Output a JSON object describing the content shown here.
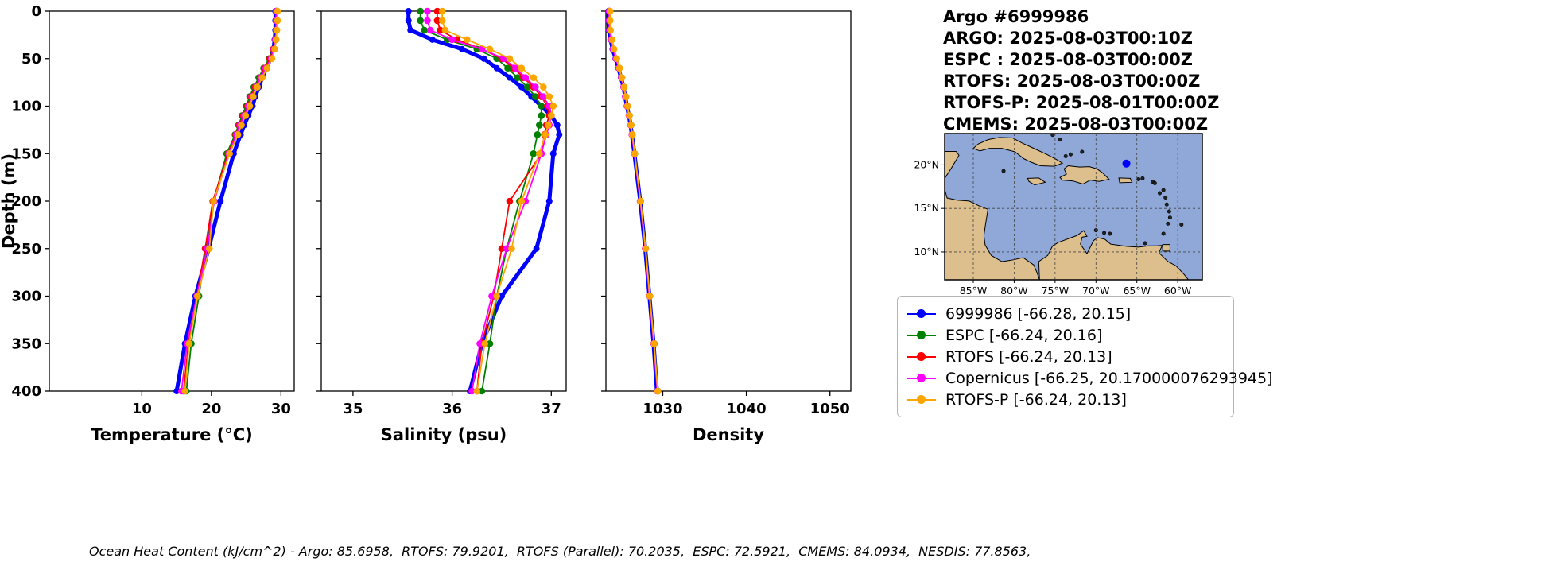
{
  "header": {
    "title": "Argo #6999986",
    "lines": [
      "ARGO: 2025-08-03T00:10Z",
      "ESPC : 2025-08-03T00:00Z",
      "RTOFS: 2025-08-03T00:00Z",
      "RTOFS-P: 2025-08-01T00:00Z",
      "CMEMS: 2025-08-03T00:00Z"
    ]
  },
  "legend": {
    "items": [
      {
        "label": "6999986 [-66.28, 20.15]",
        "color": "#0000ff"
      },
      {
        "label": "ESPC [-66.24, 20.16]",
        "color": "#008000"
      },
      {
        "label": "RTOFS [-66.24, 20.13]",
        "color": "#ff0000"
      },
      {
        "label": "Copernicus [-66.25, 20.170000076293945]",
        "color": "#ff00ff"
      },
      {
        "label": "RTOFS-P [-66.24, 20.13]",
        "color": "#ffa500"
      }
    ]
  },
  "map": {
    "lon_min": -88.5,
    "lon_max": -57.0,
    "lat_min": 6.8,
    "lat_max": 23.6,
    "xticks": [
      {
        "lon": -85,
        "label": "85°W"
      },
      {
        "lon": -80,
        "label": "80°W"
      },
      {
        "lon": -75,
        "label": "75°W"
      },
      {
        "lon": -70,
        "label": "70°W"
      },
      {
        "lon": -65,
        "label": "65°W"
      },
      {
        "lon": -60,
        "label": "60°W"
      }
    ],
    "yticks": [
      {
        "lat": 20,
        "label": "20°N"
      },
      {
        "lat": 15,
        "label": "15°N"
      },
      {
        "lat": 10,
        "label": "10°N"
      }
    ],
    "grid_lons": [
      -85,
      -80,
      -75,
      -70,
      -65,
      -60
    ],
    "grid_lats": [
      10,
      15,
      20
    ],
    "ocean_color": "#8fa8d8",
    "land_color": "#ddbe8d",
    "marker": {
      "lon": -66.28,
      "lat": 20.15,
      "color": "#0000ff"
    }
  },
  "footer": {
    "ohc_text": "Ocean Heat Content (kJ/cm^2) - Argo: 85.6958,  RTOFS: 79.9201,  RTOFS (Parallel): 70.2035,  ESPC: 72.5921,  CMEMS: 84.0934,  NESDIS: 77.8563,"
  },
  "chart_data": [
    {
      "type": "line",
      "panel": "temperature",
      "xlabel": "Temperature (°C)",
      "ylabel": "Depth (m)",
      "xlim": [
        -3.3,
        31.9
      ],
      "xticks": [
        10,
        20,
        30
      ],
      "ylim": [
        0,
        400
      ],
      "y_inverted": true,
      "yticks": [
        0,
        50,
        100,
        150,
        200,
        250,
        300,
        350,
        400
      ],
      "depths": [
        0,
        10,
        20,
        30,
        40,
        50,
        60,
        70,
        80,
        90,
        100,
        110,
        120,
        130,
        150,
        200,
        250,
        300,
        350,
        400
      ],
      "series": [
        {
          "name": "6999986",
          "color": "#0000ff",
          "values": [
            29.2,
            29.2,
            29.2,
            29.1,
            28.9,
            28.5,
            27.9,
            27.3,
            26.8,
            26.3,
            25.9,
            25.3,
            24.7,
            24.2,
            23.2,
            21.3,
            19.6,
            17.7,
            16.2,
            15.0
          ]
        },
        {
          "name": "ESPC",
          "color": "#008000",
          "values": [
            29.3,
            29.3,
            29.3,
            29.2,
            28.9,
            28.3,
            27.5,
            26.8,
            26.1,
            25.5,
            25.0,
            24.4,
            23.9,
            23.4,
            22.2,
            20.3,
            19.2,
            18.2,
            17.1,
            16.4
          ]
        },
        {
          "name": "RTOFS",
          "color": "#ff0000",
          "values": [
            29.4,
            29.4,
            29.3,
            29.2,
            28.9,
            28.4,
            27.7,
            27.0,
            26.3,
            25.7,
            25.2,
            24.6,
            24.0,
            23.5,
            22.4,
            20.2,
            19.1,
            17.9,
            16.7,
            16.0
          ]
        },
        {
          "name": "Copernicus",
          "color": "#ff00ff",
          "values": [
            29.3,
            29.3,
            29.3,
            29.2,
            29.0,
            28.6,
            27.8,
            27.1,
            26.4,
            25.8,
            25.3,
            24.7,
            24.1,
            23.6,
            22.5,
            20.4,
            19.4,
            17.9,
            16.5,
            15.7
          ]
        },
        {
          "name": "RTOFS-P",
          "color": "#ffa500",
          "values": [
            29.5,
            29.5,
            29.4,
            29.3,
            29.1,
            28.7,
            28.0,
            27.3,
            26.6,
            26.0,
            25.5,
            24.9,
            24.3,
            23.8,
            22.6,
            20.3,
            19.7,
            18.0,
            16.8,
            16.2
          ]
        }
      ]
    },
    {
      "type": "line",
      "panel": "salinity",
      "xlabel": "Salinity (psu)",
      "ylabel": "Depth (m)",
      "xlim": [
        34.68,
        37.15
      ],
      "xticks": [
        35,
        36,
        37
      ],
      "ylim": [
        0,
        400
      ],
      "y_inverted": true,
      "yticks": [
        0,
        50,
        100,
        150,
        200,
        250,
        300,
        350,
        400
      ],
      "depths": [
        0,
        10,
        20,
        30,
        40,
        50,
        60,
        70,
        80,
        90,
        100,
        110,
        120,
        130,
        150,
        200,
        250,
        300,
        350,
        400
      ],
      "series": [
        {
          "name": "6999986",
          "color": "#0000ff",
          "values": [
            35.56,
            35.56,
            35.58,
            35.8,
            36.1,
            36.32,
            36.45,
            36.58,
            36.7,
            36.8,
            36.9,
            37.0,
            37.06,
            37.08,
            37.02,
            36.98,
            36.85,
            36.5,
            36.3,
            36.18
          ]
        },
        {
          "name": "ESPC",
          "color": "#008000",
          "values": [
            35.68,
            35.68,
            35.72,
            35.95,
            36.25,
            36.45,
            36.56,
            36.66,
            36.76,
            36.84,
            36.9,
            36.9,
            36.88,
            36.86,
            36.82,
            36.68,
            36.55,
            36.45,
            36.38,
            36.3
          ]
        },
        {
          "name": "RTOFS",
          "color": "#ff0000",
          "values": [
            35.85,
            35.85,
            35.88,
            36.05,
            36.3,
            36.5,
            36.62,
            36.72,
            36.82,
            36.9,
            36.96,
            36.98,
            36.95,
            36.93,
            36.9,
            36.58,
            36.5,
            36.42,
            36.3,
            36.25
          ]
        },
        {
          "name": "Copernicus",
          "color": "#ff00ff",
          "values": [
            35.75,
            35.75,
            35.78,
            36.0,
            36.3,
            36.52,
            36.64,
            36.74,
            36.84,
            36.92,
            36.98,
            37.0,
            36.98,
            36.95,
            36.9,
            36.74,
            36.55,
            36.4,
            36.28,
            36.2
          ]
        },
        {
          "name": "RTOFS-P",
          "color": "#ffa500",
          "values": [
            35.9,
            35.9,
            35.93,
            36.15,
            36.38,
            36.58,
            36.7,
            36.82,
            36.92,
            36.98,
            37.02,
            37.0,
            36.97,
            36.94,
            36.88,
            36.7,
            36.6,
            36.45,
            36.33,
            36.25
          ]
        }
      ]
    },
    {
      "type": "line",
      "panel": "density",
      "xlabel": "Density",
      "ylabel": "Depth (m)",
      "xlim": [
        1023.2,
        1052.5
      ],
      "xticks": [
        1030,
        1040,
        1050
      ],
      "ylim": [
        0,
        400
      ],
      "y_inverted": true,
      "yticks": [
        0,
        50,
        100,
        150,
        200,
        250,
        300,
        350,
        400
      ],
      "depths": [
        0,
        10,
        20,
        30,
        40,
        50,
        60,
        70,
        80,
        90,
        100,
        110,
        120,
        130,
        150,
        200,
        250,
        300,
        350,
        400
      ],
      "series": [
        {
          "name": "6999986",
          "color": "#0000ff",
          "values": [
            1023.5,
            1023.5,
            1023.55,
            1023.75,
            1024.0,
            1024.35,
            1024.7,
            1025.0,
            1025.3,
            1025.5,
            1025.7,
            1025.95,
            1026.15,
            1026.3,
            1026.6,
            1027.3,
            1027.9,
            1028.4,
            1028.9,
            1029.3
          ]
        },
        {
          "name": "ESPC",
          "color": "#008000",
          "values": [
            1023.6,
            1023.6,
            1023.65,
            1023.85,
            1024.1,
            1024.45,
            1024.8,
            1025.1,
            1025.38,
            1025.58,
            1025.78,
            1026.0,
            1026.2,
            1026.35,
            1026.65,
            1027.35,
            1027.95,
            1028.45,
            1028.98,
            1029.42
          ]
        },
        {
          "name": "RTOFS",
          "color": "#ff0000",
          "values": [
            1023.65,
            1023.65,
            1023.7,
            1023.9,
            1024.12,
            1024.45,
            1024.78,
            1025.08,
            1025.35,
            1025.55,
            1025.75,
            1025.98,
            1026.18,
            1026.33,
            1026.62,
            1027.32,
            1027.92,
            1028.42,
            1028.95,
            1029.38
          ]
        },
        {
          "name": "Copernicus",
          "color": "#ff00ff",
          "values": [
            1023.58,
            1023.58,
            1023.62,
            1023.82,
            1024.06,
            1024.4,
            1024.74,
            1025.04,
            1025.32,
            1025.52,
            1025.73,
            1025.96,
            1026.16,
            1026.31,
            1026.6,
            1027.3,
            1027.9,
            1028.4,
            1028.92,
            1029.35
          ]
        },
        {
          "name": "RTOFS-P",
          "color": "#ffa500",
          "values": [
            1023.7,
            1023.7,
            1023.74,
            1023.94,
            1024.16,
            1024.5,
            1024.82,
            1025.1,
            1025.38,
            1025.58,
            1025.78,
            1026.0,
            1026.2,
            1026.35,
            1026.64,
            1027.34,
            1027.94,
            1028.44,
            1028.96,
            1029.4
          ]
        }
      ]
    }
  ]
}
